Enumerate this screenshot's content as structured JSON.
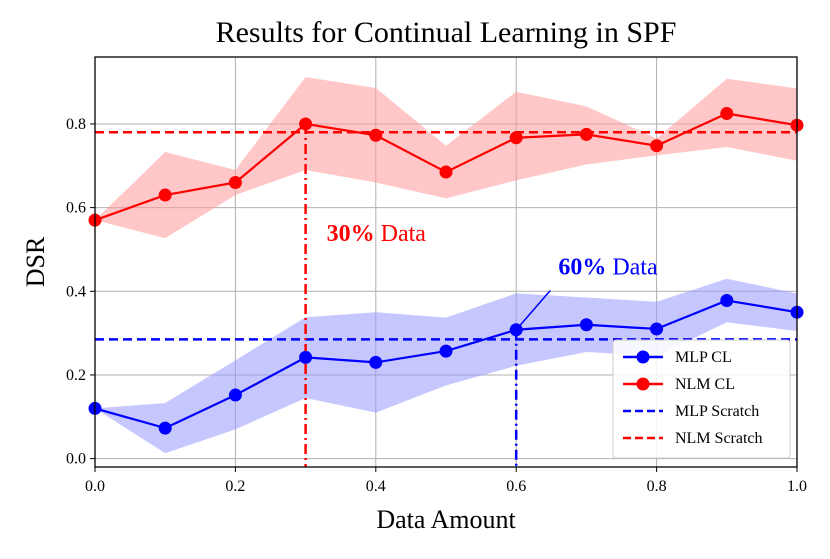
{
  "chart_data": {
    "type": "line",
    "title": "Results for Continual Learning in SPF",
    "xlabel": "Data Amount",
    "ylabel": "DSR",
    "xlim": [
      0.0,
      1.0
    ],
    "ylim": [
      -0.02,
      0.96
    ],
    "grid": true,
    "x_ticks": [
      0.0,
      0.2,
      0.4,
      0.6,
      0.8,
      1.0
    ],
    "x_tick_labels": [
      "0.0",
      "0.2",
      "0.4",
      "0.6",
      "0.8",
      "1.0"
    ],
    "y_ticks": [
      0.0,
      0.2,
      0.4,
      0.6,
      0.8
    ],
    "y_tick_labels": [
      "0.0",
      "0.2",
      "0.4",
      "0.6",
      "0.8"
    ],
    "x": [
      0.0,
      0.1,
      0.2,
      0.3,
      0.4,
      0.5,
      0.6,
      0.7,
      0.8,
      0.9,
      1.0
    ],
    "series": [
      {
        "name": "MLP CL",
        "color": "#0000ff",
        "band_color": "#9999ff",
        "values": [
          0.12,
          0.073,
          0.152,
          0.242,
          0.23,
          0.257,
          0.308,
          0.32,
          0.31,
          0.378,
          0.35
        ],
        "band_low": [
          0.12,
          0.013,
          0.07,
          0.145,
          0.11,
          0.175,
          0.222,
          0.255,
          0.245,
          0.326,
          0.305
        ],
        "band_high": [
          0.12,
          0.133,
          0.235,
          0.338,
          0.35,
          0.337,
          0.395,
          0.385,
          0.375,
          0.43,
          0.395
        ]
      },
      {
        "name": "NLM CL",
        "color": "#ff0000",
        "band_color": "#ff9999",
        "values": [
          0.57,
          0.63,
          0.66,
          0.8,
          0.773,
          0.685,
          0.767,
          0.775,
          0.748,
          0.825,
          0.797
        ],
        "band_low": [
          0.57,
          0.527,
          0.63,
          0.69,
          0.66,
          0.622,
          0.665,
          0.703,
          0.725,
          0.745,
          0.712
        ],
        "band_high": [
          0.57,
          0.733,
          0.69,
          0.912,
          0.886,
          0.748,
          0.877,
          0.842,
          0.765,
          0.908,
          0.885
        ]
      }
    ],
    "reference_lines": [
      {
        "name": "MLP Scratch",
        "color": "#0000ff",
        "style": "dashed",
        "y": 0.285
      },
      {
        "name": "NLM Scratch",
        "color": "#ff0000",
        "style": "dashed",
        "y": 0.78
      }
    ],
    "vertical_markers": [
      {
        "color": "#ff0000",
        "x": 0.3,
        "y_top": 0.8,
        "style": "dashdot"
      },
      {
        "color": "#0000ff",
        "x": 0.6,
        "y_top": 0.308,
        "style": "dashdot"
      }
    ],
    "annotations": [
      {
        "bold": "30%",
        "rest": " Data",
        "color": "#ff0000",
        "x": 0.33,
        "y": 0.52
      },
      {
        "bold": "60%",
        "rest": " Data",
        "color": "#0000ff",
        "x": 0.66,
        "y": 0.44,
        "arrow_to_x": 0.6,
        "arrow_to_y": 0.308
      }
    ],
    "legend": {
      "position": "lower-right",
      "entries": [
        {
          "label": "MLP CL",
          "color": "#0000ff",
          "style": "line-marker"
        },
        {
          "label": "NLM CL",
          "color": "#ff0000",
          "style": "line-marker"
        },
        {
          "label": "MLP Scratch",
          "color": "#0000ff",
          "style": "dashed"
        },
        {
          "label": "NLM Scratch",
          "color": "#ff0000",
          "style": "dashed"
        }
      ]
    }
  }
}
